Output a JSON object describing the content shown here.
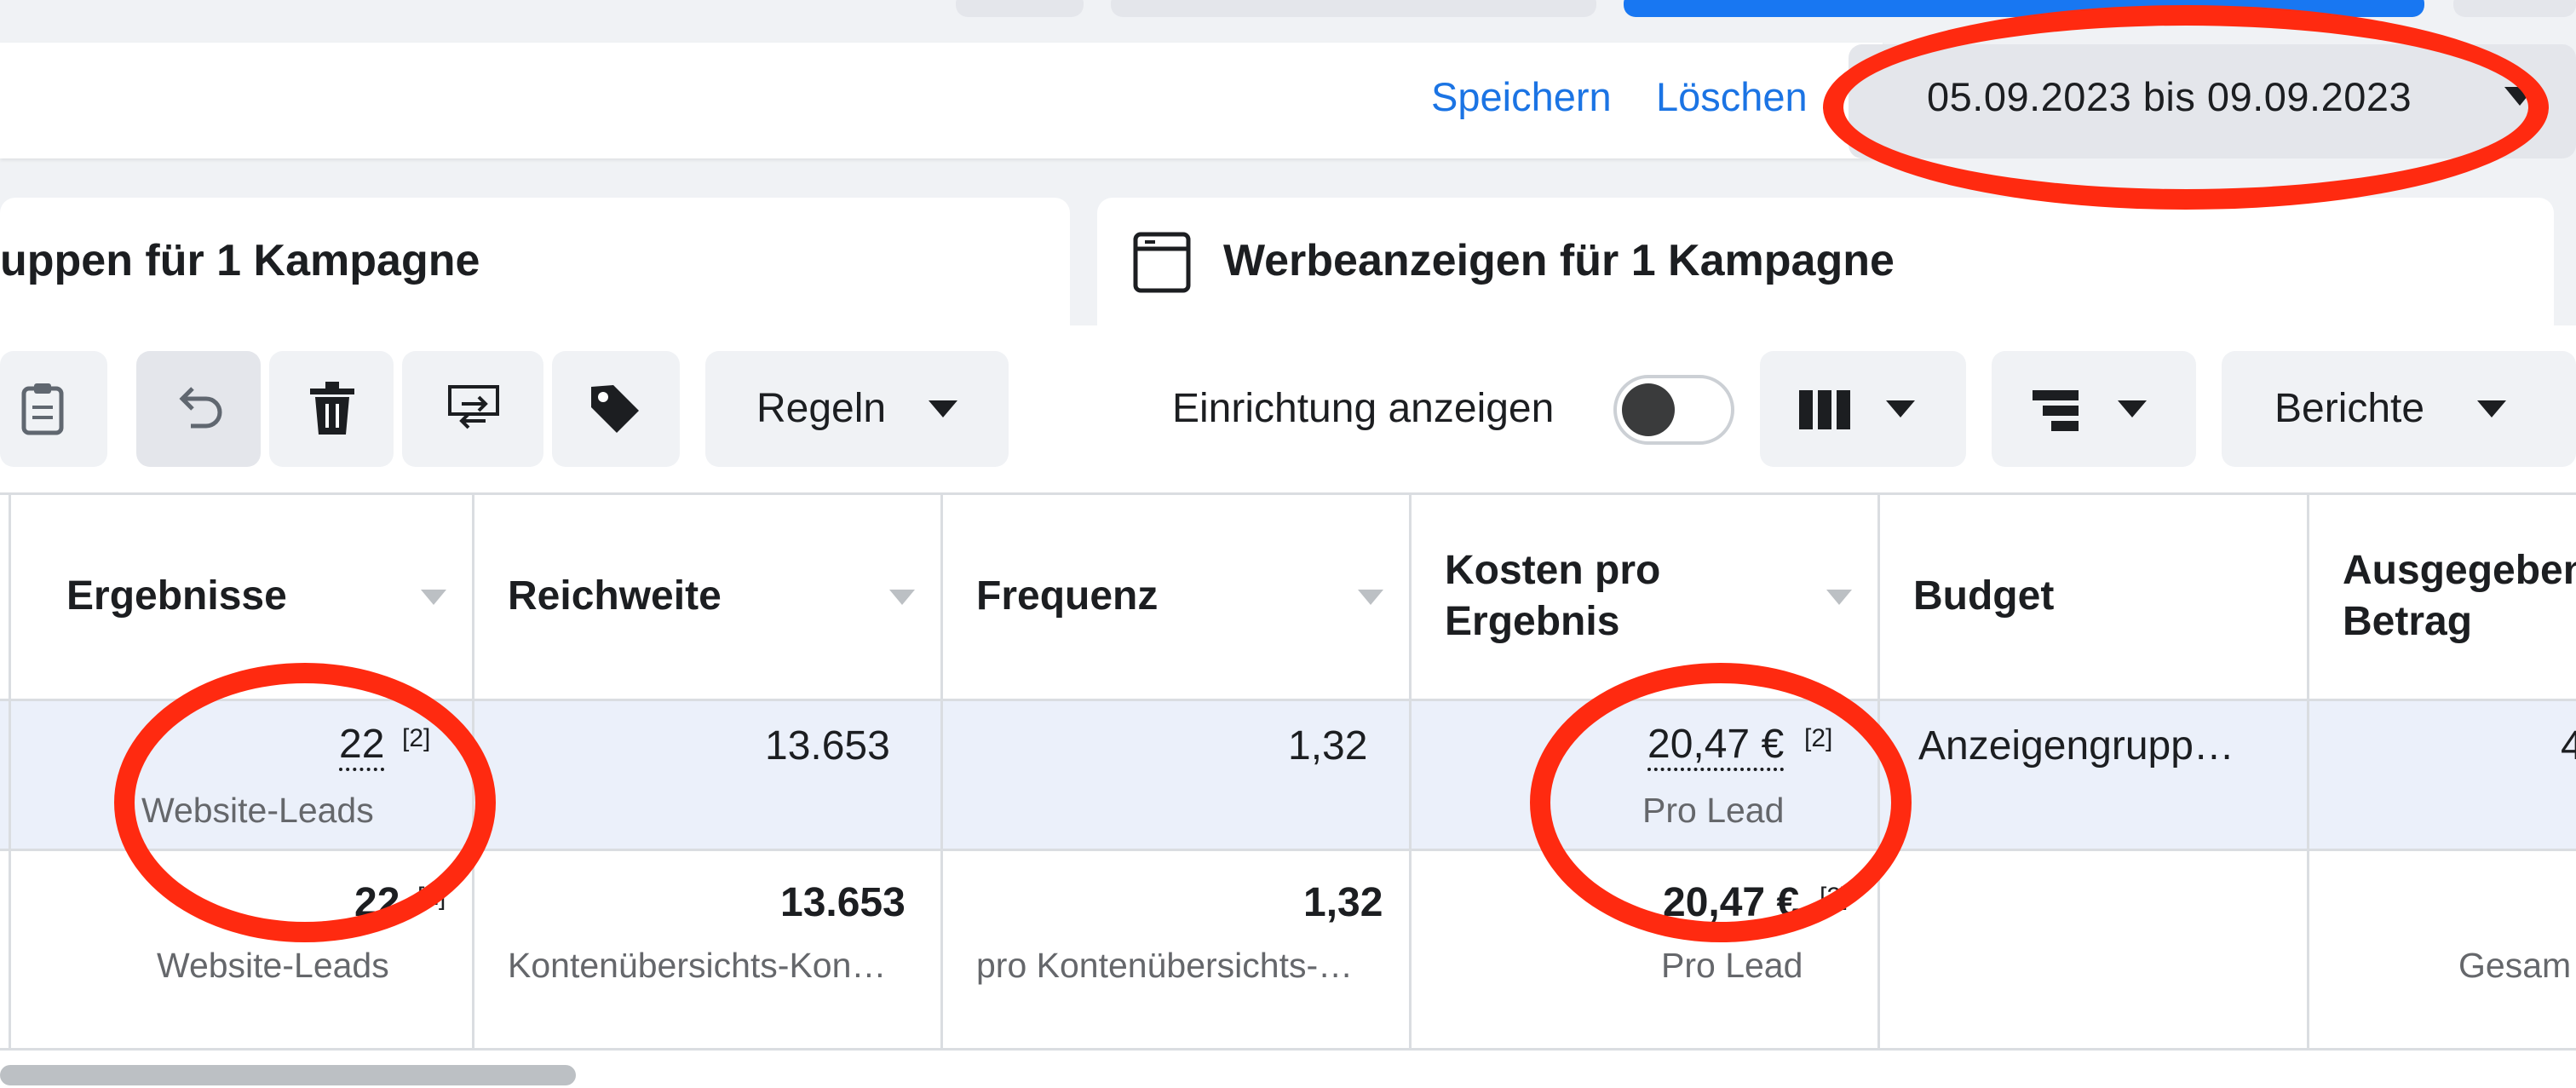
{
  "toolbar_top": {
    "save_label": "Speichern",
    "delete_label": "Löschen",
    "date_range": "05.09.2023 bis 09.09.2023"
  },
  "tabs": {
    "adsets_title": "uppen für 1 Kampagne",
    "ads_title": "Werbeanzeigen für 1 Kampagne"
  },
  "toolbar": {
    "rules_label": "Regeln",
    "show_setup_label": "Einrichtung anzeigen",
    "reports_label": "Berichte"
  },
  "table": {
    "headers": {
      "results": "Ergebnisse",
      "reach": "Reichweite",
      "frequency": "Frequenz",
      "cost_per_result_line1": "Kosten pro",
      "cost_per_result_line2": "Ergebnis",
      "budget": "Budget",
      "amount_spent_line1": "Ausgegeben",
      "amount_spent_line2": "Betrag"
    },
    "row": {
      "results_value": "22",
      "results_sup": "[2]",
      "results_sub": "Website-Leads",
      "reach_value": "13.653",
      "frequency_value": "1,32",
      "cost_value": "20,47 €",
      "cost_sup": "[2]",
      "cost_sub": "Pro Lead",
      "budget_value": "Anzeigengrupp…",
      "spent_value": "4"
    },
    "totals": {
      "results_value": "22",
      "results_sup": "[2]",
      "results_sub": "Website-Leads",
      "reach_value": "13.653",
      "reach_sub": "Kontenübersichts-Kon…",
      "frequency_value": "1,32",
      "frequency_sub": "pro Kontenübersichts-…",
      "cost_value": "20,47 €",
      "cost_sup": "[2]",
      "cost_sub": "Pro Lead",
      "spent_sub": "Gesam"
    }
  },
  "colors": {
    "accent_blue": "#1b74e4",
    "annotation_red": "#ff2a10",
    "selected_row": "#ebf0fa"
  }
}
